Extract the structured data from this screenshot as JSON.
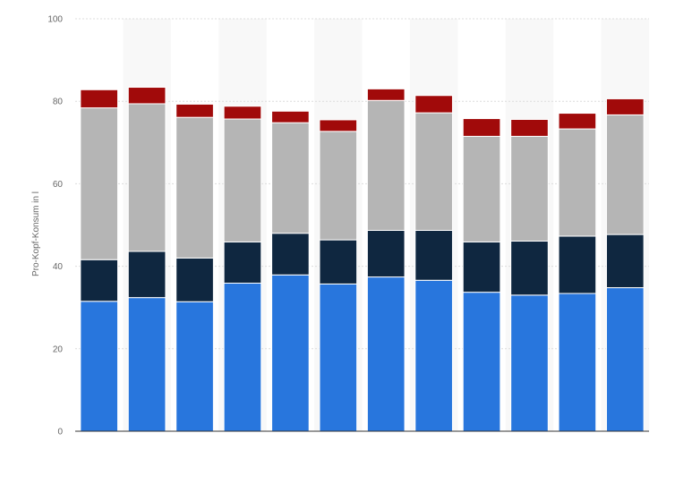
{
  "chart_data": {
    "type": "bar",
    "stacked": true,
    "title": "",
    "xlabel": "",
    "ylabel": "Pro-Kopf-Konsum in l",
    "ylim": [
      0,
      100
    ],
    "yticks": [
      0,
      20,
      40,
      60,
      80,
      100
    ],
    "grid": true,
    "legend": "none",
    "categories": [
      "",
      "",
      "",
      "",
      "",
      "",
      "",
      "",
      "",
      "",
      "",
      ""
    ],
    "series": [
      {
        "color": "#2876dd",
        "values": [
          31.5,
          32.4,
          31.4,
          35.9,
          37.9,
          35.7,
          37.4,
          36.6,
          33.7,
          33.0,
          33.4,
          34.8
        ]
      },
      {
        "color": "#0f2740",
        "values": [
          10.1,
          11.2,
          10.6,
          10.0,
          10.1,
          10.7,
          11.3,
          12.1,
          12.2,
          13.1,
          13.9,
          12.9
        ]
      },
      {
        "color": "#b5b5b5",
        "values": [
          36.8,
          35.8,
          34.1,
          29.8,
          26.8,
          26.3,
          31.5,
          28.5,
          25.6,
          25.4,
          26.0,
          29.0
        ]
      },
      {
        "color": "#a10a0a",
        "values": [
          4.4,
          4.0,
          3.2,
          3.1,
          2.8,
          2.8,
          2.8,
          4.2,
          4.3,
          4.1,
          3.8,
          3.9
        ]
      }
    ]
  }
}
